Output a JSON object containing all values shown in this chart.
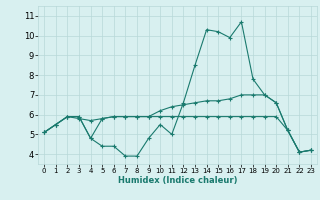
{
  "title": "",
  "xlabel": "Humidex (Indice chaleur)",
  "ylabel": "",
  "x_values": [
    0,
    1,
    2,
    3,
    4,
    5,
    6,
    7,
    8,
    9,
    10,
    11,
    12,
    13,
    14,
    15,
    16,
    17,
    18,
    19,
    20,
    21,
    22,
    23
  ],
  "line1": [
    5.1,
    5.5,
    5.9,
    5.9,
    4.8,
    4.4,
    4.4,
    3.9,
    3.9,
    4.8,
    5.5,
    5.0,
    6.6,
    8.5,
    10.3,
    10.2,
    9.9,
    10.7,
    7.8,
    7.0,
    6.6,
    5.2,
    4.1,
    4.2
  ],
  "line2": [
    5.1,
    5.5,
    5.9,
    5.9,
    4.8,
    5.8,
    5.9,
    5.9,
    5.9,
    5.9,
    6.2,
    6.4,
    6.5,
    6.6,
    6.7,
    6.7,
    6.8,
    7.0,
    7.0,
    7.0,
    6.6,
    5.2,
    4.1,
    4.2
  ],
  "line3": [
    5.1,
    5.5,
    5.9,
    5.8,
    5.7,
    5.8,
    5.9,
    5.9,
    5.9,
    5.9,
    5.9,
    5.9,
    5.9,
    5.9,
    5.9,
    5.9,
    5.9,
    5.9,
    5.9,
    5.9,
    5.9,
    5.2,
    4.1,
    4.2
  ],
  "line_color": "#1a7a6e",
  "bg_color": "#d8f0f0",
  "grid_color": "#b8d8d8",
  "ylim": [
    3.5,
    11.5
  ],
  "xlim": [
    -0.5,
    23.5
  ],
  "yticks": [
    4,
    5,
    6,
    7,
    8,
    9,
    10,
    11
  ],
  "xticks": [
    0,
    1,
    2,
    3,
    4,
    5,
    6,
    7,
    8,
    9,
    10,
    11,
    12,
    13,
    14,
    15,
    16,
    17,
    18,
    19,
    20,
    21,
    22,
    23
  ]
}
